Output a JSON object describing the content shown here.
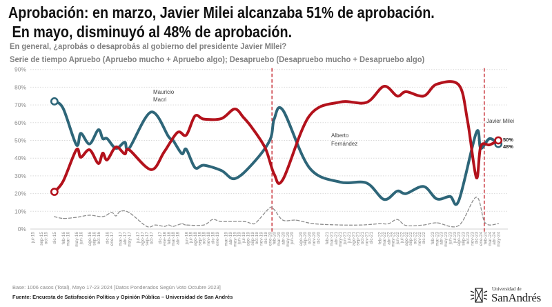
{
  "header": {
    "title_line1": "Aprobación: en marzo, Javier Milei alcanzaba 51% de aprobación.",
    "title_line2": " En mayo, disminuyó al 48% de aprobación.",
    "subtitle_line1": "En general, ¿aprobás o desaprobás al gobierno del presidente Javier MIlei?",
    "subtitle_line2": "Serie de tiempo Apruebo (Apruebo mucho + Apruebo algo); Desapruebo (Desapruebo mucho + Desapruebo algo)"
  },
  "chart_data": {
    "type": "line",
    "title": "",
    "xlabel": "",
    "ylabel": "",
    "ylim": [
      0,
      90
    ],
    "yticks": [
      "0%",
      "10%",
      "20%",
      "30%",
      "40%",
      "50%",
      "60%",
      "70%",
      "80%",
      "90%"
    ],
    "grid": true,
    "x_tick_labels": [
      "jul-15",
      "sep-15",
      "oct-15",
      "dic-15",
      "feb-16",
      "mar-16",
      "may-16",
      "jun-16",
      "ago-16",
      "sep-16",
      "oct-16",
      "dic-16",
      "ene-17",
      "mar-17",
      "abr-17",
      "may-17",
      "jul-17",
      "ago-17",
      "sep-17",
      "oct-17",
      "dic-17",
      "ene-18",
      "feb-18",
      "mar-18",
      "abr-18",
      "jun-18",
      "jul-18",
      "ago-18",
      "sep-18",
      "oct-18",
      "nov-18",
      "dic-18",
      "ene-19",
      "mar-19",
      "abr-19",
      "may-19",
      "jun-19",
      "jul-19",
      "ago-19",
      "sep-19",
      "oct-19",
      "nov-19",
      "dic-19",
      "ene-20",
      "feb-20",
      "mar-20",
      "abr-20",
      "may-20",
      "jun-20",
      "ago-20",
      "sep-20",
      "oct-20",
      "nov-20",
      "dic-20",
      "feb-21",
      "mar-21",
      "abr-21",
      "may-21",
      "jun-21",
      "jul-21",
      "ago-21",
      "sep-21",
      "oct-21",
      "nov-21",
      "dic-21",
      "feb-22",
      "mar-22",
      "abr-22",
      "may-22",
      "jun-22",
      "jul-22",
      "ago-22",
      "sep-22",
      "oct-22",
      "nov-22",
      "dic-22",
      "feb-23",
      "mar-23",
      "abr-23",
      "may-23",
      "jun-23",
      "jul-23",
      "ago-23",
      "sep-23",
      "oct-23",
      "nov-23",
      "dic-23",
      "ene-24",
      "feb-24",
      "mar-24",
      "abr-24",
      "may-24"
    ],
    "series": [
      {
        "color": "#2e6679",
        "style": "solid",
        "points": [
          [
            "dic-15",
            72
          ],
          [
            "feb-16",
            68
          ],
          [
            "may-16",
            47.5
          ],
          [
            "jun-16",
            54
          ],
          [
            "ago-16",
            48
          ],
          [
            "oct-16",
            56
          ],
          [
            "nov-16",
            51
          ],
          [
            "dic-16",
            51
          ],
          [
            "feb-17",
            45.5
          ],
          [
            "abr-17",
            49
          ],
          [
            "may-17",
            45.5
          ],
          [
            "oct-17",
            66
          ],
          [
            "feb-18",
            52
          ],
          [
            "mar-18",
            50
          ],
          [
            "may-18",
            42.5
          ],
          [
            "jun-18",
            45
          ],
          [
            "ago-18",
            34.6
          ],
          [
            "oct-18",
            36
          ],
          [
            "feb-19",
            33
          ],
          [
            "may-19",
            28.4
          ],
          [
            "sep-19",
            36.6
          ],
          [
            "ene-20",
            50
          ],
          [
            "feb-20",
            62
          ],
          [
            "abr-20",
            67
          ],
          [
            "oct-20",
            34.6
          ],
          [
            "may-21",
            26.5
          ],
          [
            "nov-21",
            26
          ],
          [
            "mar-22",
            16.7
          ],
          [
            "jun-22",
            21.4
          ],
          [
            "ago-22",
            20
          ],
          [
            "dic-22",
            24
          ],
          [
            "mar-23",
            17
          ],
          [
            "jun-23",
            18.4
          ],
          [
            "ago-23",
            16
          ],
          [
            "dic-23",
            54.5
          ],
          [
            "ene-24",
            45.5
          ],
          [
            "mar-24",
            51
          ],
          [
            "may-24",
            48
          ]
        ],
        "end_label": "48%"
      },
      {
        "color": "#b3121c",
        "style": "solid",
        "points": [
          [
            "dic-15",
            21
          ],
          [
            "feb-16",
            27
          ],
          [
            "may-16",
            44.7
          ],
          [
            "jun-16",
            40.5
          ],
          [
            "ago-16",
            44.7
          ],
          [
            "oct-16",
            37
          ],
          [
            "nov-16",
            42.8
          ],
          [
            "dic-16",
            39
          ],
          [
            "feb-17",
            46.3
          ],
          [
            "abr-17",
            42.4
          ],
          [
            "may-17",
            44.7
          ],
          [
            "oct-17",
            33.5
          ],
          [
            "ene-18",
            43.6
          ],
          [
            "abr-18",
            54.5
          ],
          [
            "jun-18",
            53
          ],
          [
            "ago-18",
            63.8
          ],
          [
            "oct-18",
            62
          ],
          [
            "feb-19",
            62.3
          ],
          [
            "may-19",
            67.7
          ],
          [
            "jul-19",
            63
          ],
          [
            "sep-19",
            57
          ],
          [
            "dic-19",
            45.5
          ],
          [
            "feb-20",
            31
          ],
          [
            "abr-20",
            28
          ],
          [
            "oct-20",
            63.8
          ],
          [
            "may-21",
            71.6
          ],
          [
            "nov-21",
            71.4
          ],
          [
            "mar-22",
            80.5
          ],
          [
            "jun-22",
            75
          ],
          [
            "ago-22",
            77.5
          ],
          [
            "dic-22",
            75
          ],
          [
            "mar-23",
            81.7
          ],
          [
            "ago-23",
            81.3
          ],
          [
            "oct-23",
            61
          ],
          [
            "dic-23",
            29
          ],
          [
            "ene-24",
            46.7
          ],
          [
            "mar-24",
            47.5
          ],
          [
            "may-24",
            50
          ]
        ],
        "end_label": "50%"
      },
      {
        "color": "#8c8c8c",
        "style": "dashed",
        "points": [
          [
            "dic-15",
            7
          ],
          [
            "feb-16",
            6
          ],
          [
            "may-16",
            6.6
          ],
          [
            "ago-16",
            7.8
          ],
          [
            "nov-16",
            7
          ],
          [
            "ene-17",
            9.3
          ],
          [
            "feb-17",
            7.4
          ],
          [
            "mar-17",
            10
          ],
          [
            "may-17",
            9.3
          ],
          [
            "sep-17",
            1.5
          ],
          [
            "nov-17",
            2.3
          ],
          [
            "ene-18",
            1.5
          ],
          [
            "feb-18",
            2.3
          ],
          [
            "mar-18",
            1.5
          ],
          [
            "may-18",
            3
          ],
          [
            "jun-18",
            2.3
          ],
          [
            "oct-18",
            2.3
          ],
          [
            "dic-18",
            5.4
          ],
          [
            "feb-19",
            4.3
          ],
          [
            "jul-19",
            4.3
          ],
          [
            "sep-19",
            3
          ],
          [
            "oct-19",
            3.9
          ],
          [
            "ene-20",
            12
          ],
          [
            "feb-20",
            11
          ],
          [
            "abr-20",
            5
          ],
          [
            "jul-20",
            5
          ],
          [
            "nov-20",
            3
          ],
          [
            "may-21",
            2.3
          ],
          [
            "oct-21",
            2.3
          ],
          [
            "feb-22",
            3
          ],
          [
            "abr-22",
            3
          ],
          [
            "jun-22",
            5.4
          ],
          [
            "ago-22",
            2
          ],
          [
            "dic-22",
            2.3
          ],
          [
            "mar-23",
            3.5
          ],
          [
            "ago-23",
            2
          ],
          [
            "dic-23",
            18
          ],
          [
            "feb-24",
            3.5
          ],
          [
            "may-24",
            3
          ]
        ]
      }
    ],
    "annotations": {
      "macri_line1": "Mauricio",
      "macri_line2": "Macri",
      "fernandez_line1": "Alberto",
      "fernandez_line2": "Fernández",
      "milei": "Javier Milei"
    },
    "divider_color": "#c0141c"
  },
  "footer": {
    "base": "Base: 1006 casos (Total), Mayo 17-23 2024 [Datos Ponderados Según Voto Octubre 2023]",
    "source": "Fuente: Encuesta de Satisfacción Política y Opinión Pública – Universidad de San Andrés",
    "logo_small": "Universidad de",
    "logo_big": "SanAndrés"
  }
}
